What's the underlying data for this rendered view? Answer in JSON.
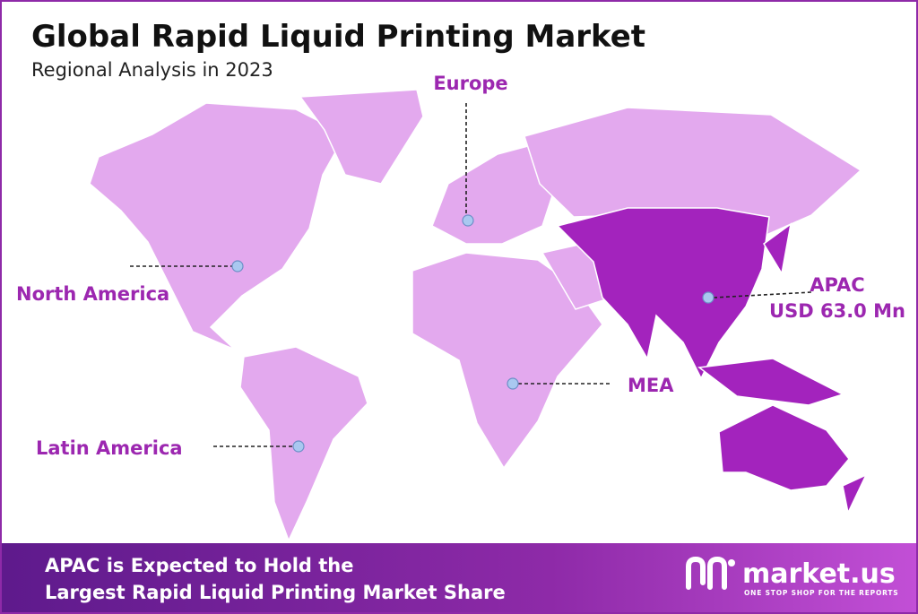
{
  "header": {
    "title": "Global Rapid Liquid Printing Market",
    "subtitle": "Regional Analysis in 2023"
  },
  "regions": [
    {
      "label": "Europe"
    },
    {
      "label": "North America"
    },
    {
      "label": "APAC",
      "value": "USD 63.0 Mn"
    },
    {
      "label": "MEA"
    },
    {
      "label": "Latin America"
    }
  ],
  "footer": {
    "lines": [
      "APAC is Expected to Hold the",
      "Largest Rapid Liquid Printing Market Share"
    ]
  },
  "logo": {
    "name": "market.us",
    "tagline": "ONE STOP SHOP FOR THE REPORTS"
  }
}
